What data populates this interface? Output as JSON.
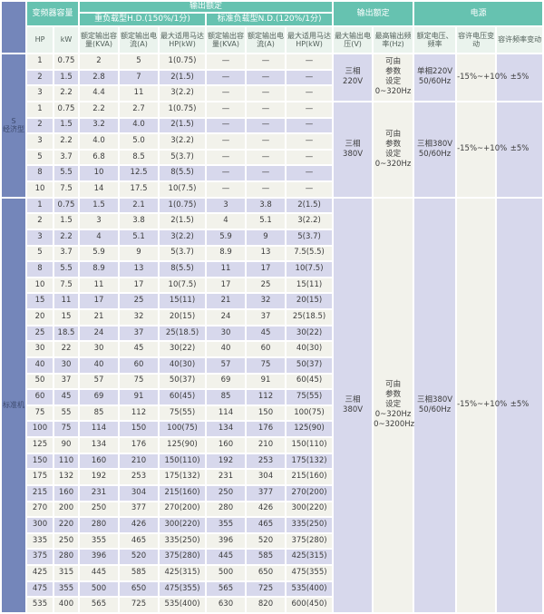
{
  "colors": {
    "teal": "#66c2b0",
    "pale_header": "#eaf3ed",
    "sidebar_blue": "#7486ba",
    "row_lavender": "#d7d8ec",
    "row_cream": "#f2f2eb",
    "text": "#3c3c3c"
  },
  "header": {
    "converter_capacity": "变频器容量",
    "output_rating": "输出额定",
    "output_rating2": "输出额定",
    "power": "电源",
    "hd": "重负载型H.D.(150%/1分)",
    "nd": "标准负载型N.D.(120%/1分)",
    "columns": [
      "HP",
      "kW",
      "额定输出容量(KVA)",
      "额定输出电流(A)",
      "最大适用马达HP(kW)",
      "额定输出容量(KVA)",
      "额定输出电流(A)",
      "最大适用马达HP(kW)",
      "最大输出电压(V)",
      "最高输出频率(Hz)",
      "额定电压、频率",
      "容许电压变动",
      "容许频率变动"
    ]
  },
  "column_ids": [
    "hp",
    "kw",
    "hd-kva",
    "hd-amp",
    "hd-motor",
    "nd-kva",
    "nd-amp",
    "nd-motor"
  ],
  "group_column_ids": [
    "max-output-voltage",
    "max-output-frequency",
    "rated-voltage-frequency",
    "voltage-tolerance",
    "frequency-tolerance"
  ],
  "sections": [
    {
      "id": "economy",
      "label": "S\n经济型",
      "stripe": "cycle3",
      "rows": [
        [
          "1",
          "0.75",
          "2",
          "5",
          "1(0.75)",
          "—",
          "—",
          "—"
        ],
        [
          "2",
          "1.5",
          "2.8",
          "7",
          "2(1.5)",
          "—",
          "—",
          "—"
        ],
        [
          "3",
          "2.2",
          "4.4",
          "11",
          "3(2.2)",
          "—",
          "—",
          "—"
        ],
        [
          "1",
          "0.75",
          "2.2",
          "2.7",
          "1(0.75)",
          "—",
          "—",
          "—"
        ],
        [
          "2",
          "1.5",
          "3.2",
          "4.0",
          "2(1.5)",
          "—",
          "—",
          "—"
        ],
        [
          "3",
          "2.2",
          "4.0",
          "5.0",
          "3(2.2)",
          "—",
          "—",
          "—"
        ],
        [
          "5",
          "3.7",
          "6.8",
          "8.5",
          "5(3.7)",
          "—",
          "—",
          "—"
        ],
        [
          "8",
          "5.5",
          "10",
          "12.5",
          "8(5.5)",
          "—",
          "—",
          "—"
        ],
        [
          "10",
          "7.5",
          "14",
          "17.5",
          "10(7.5)",
          "—",
          "—",
          "—"
        ]
      ],
      "groups": [
        {
          "span": 3,
          "cells": [
            "三相\n220V",
            "可由\n参数\n设定\n0~320Hz",
            "单相220V\n50/60Hz",
            "-15%~+10%",
            "±5%"
          ]
        },
        {
          "span": 6,
          "cells": [
            "三相\n380V",
            "可由\n参数\n设定\n0~320Hz",
            "三相380V\n50/60Hz",
            "-15%~+10%",
            "±5%"
          ]
        }
      ]
    },
    {
      "id": "standard",
      "label": "标准机",
      "stripe": "odd",
      "rows": [
        [
          "1",
          "0.75",
          "1.5",
          "2.1",
          "1(0.75)",
          "3",
          "3.8",
          "2(1.5)"
        ],
        [
          "2",
          "1.5",
          "3",
          "3.8",
          "2(1.5)",
          "4",
          "5.1",
          "3(2.2)"
        ],
        [
          "3",
          "2.2",
          "4",
          "5.1",
          "3(2.2)",
          "5.9",
          "9",
          "5(3.7)"
        ],
        [
          "5",
          "3.7",
          "5.9",
          "9",
          "5(3.7)",
          "8.9",
          "13",
          "7.5(5.5)"
        ],
        [
          "8",
          "5.5",
          "8.9",
          "13",
          "8(5.5)",
          "11",
          "17",
          "10(7.5)"
        ],
        [
          "10",
          "7.5",
          "11",
          "17",
          "10(7.5)",
          "17",
          "25",
          "15(11)"
        ],
        [
          "15",
          "11",
          "17",
          "25",
          "15(11)",
          "21",
          "32",
          "20(15)"
        ],
        [
          "20",
          "15",
          "21",
          "32",
          "20(15)",
          "24",
          "37",
          "25(18.5)"
        ],
        [
          "25",
          "18.5",
          "24",
          "37",
          "25(18.5)",
          "30",
          "45",
          "30(22)"
        ],
        [
          "30",
          "22",
          "30",
          "45",
          "30(22)",
          "40",
          "60",
          "40(30)"
        ],
        [
          "40",
          "30",
          "40",
          "60",
          "40(30)",
          "57",
          "75",
          "50(37)"
        ],
        [
          "50",
          "37",
          "57",
          "75",
          "50(37)",
          "69",
          "91",
          "60(45)"
        ],
        [
          "60",
          "45",
          "69",
          "91",
          "60(45)",
          "85",
          "112",
          "75(55)"
        ],
        [
          "75",
          "55",
          "85",
          "112",
          "75(55)",
          "114",
          "150",
          "100(75)"
        ],
        [
          "100",
          "75",
          "114",
          "150",
          "100(75)",
          "134",
          "176",
          "125(90)"
        ],
        [
          "125",
          "90",
          "134",
          "176",
          "125(90)",
          "160",
          "210",
          "150(110)"
        ],
        [
          "150",
          "110",
          "160",
          "210",
          "150(110)",
          "192",
          "253",
          "175(132)"
        ],
        [
          "175",
          "132",
          "192",
          "253",
          "175(132)",
          "231",
          "304",
          "215(160)"
        ],
        [
          "215",
          "160",
          "231",
          "304",
          "215(160)",
          "250",
          "377",
          "270(200)"
        ],
        [
          "270",
          "200",
          "250",
          "377",
          "270(200)",
          "280",
          "426",
          "300(220)"
        ],
        [
          "300",
          "220",
          "280",
          "426",
          "300(220)",
          "355",
          "465",
          "335(250)"
        ],
        [
          "335",
          "250",
          "355",
          "465",
          "335(250)",
          "396",
          "520",
          "375(280)"
        ],
        [
          "375",
          "280",
          "396",
          "520",
          "375(280)",
          "445",
          "585",
          "425(315)"
        ],
        [
          "425",
          "315",
          "445",
          "585",
          "425(315)",
          "500",
          "650",
          "475(355)"
        ],
        [
          "475",
          "355",
          "500",
          "650",
          "475(355)",
          "565",
          "725",
          "535(400)"
        ],
        [
          "535",
          "400",
          "565",
          "725",
          "535(400)",
          "630",
          "820",
          "600(450)"
        ]
      ],
      "groups": [
        {
          "span": 26,
          "cells": [
            "三相\n380V",
            "可由\n参数\n设定\n0~320Hz\n0~3200Hz",
            "三相380V\n50/60Hz",
            "-15%~+10%",
            "±5%"
          ]
        }
      ]
    }
  ]
}
